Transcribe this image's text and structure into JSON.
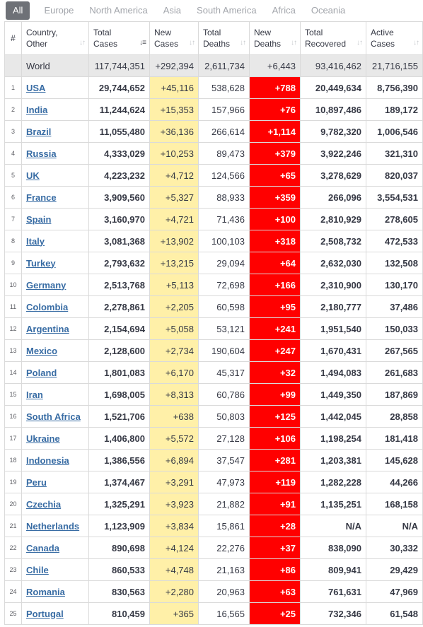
{
  "tabs": [
    "All",
    "Europe",
    "North America",
    "Asia",
    "South America",
    "Africa",
    "Oceania"
  ],
  "headers": {
    "index": "#",
    "country_line1": "Country,",
    "country_line2": "Other",
    "total_cases_line1": "Total",
    "total_cases_line2": "Cases",
    "new_cases_line1": "New",
    "new_cases_line2": "Cases",
    "total_deaths_line1": "Total",
    "total_deaths_line2": "Deaths",
    "new_deaths_line1": "New",
    "new_deaths_line2": "Deaths",
    "total_recovered_line1": "Total",
    "total_recovered_line2": "Recovered",
    "active_cases_line1": "Active",
    "active_cases_line2": "Cases"
  },
  "world": {
    "country": "World",
    "total_cases": "117,744,351",
    "new_cases": "+292,394",
    "total_deaths": "2,611,734",
    "new_deaths": "+6,443",
    "total_recovered": "93,416,462",
    "active_cases": "21,716,155"
  },
  "rows": [
    {
      "index": "1",
      "country": "USA",
      "total_cases": "29,744,652",
      "new_cases": "+45,116",
      "total_deaths": "538,628",
      "new_deaths": "+788",
      "total_recovered": "20,449,634",
      "active_cases": "8,756,390"
    },
    {
      "index": "2",
      "country": "India",
      "total_cases": "11,244,624",
      "new_cases": "+15,353",
      "total_deaths": "157,966",
      "new_deaths": "+76",
      "total_recovered": "10,897,486",
      "active_cases": "189,172"
    },
    {
      "index": "3",
      "country": "Brazil",
      "total_cases": "11,055,480",
      "new_cases": "+36,136",
      "total_deaths": "266,614",
      "new_deaths": "+1,114",
      "total_recovered": "9,782,320",
      "active_cases": "1,006,546"
    },
    {
      "index": "4",
      "country": "Russia",
      "total_cases": "4,333,029",
      "new_cases": "+10,253",
      "total_deaths": "89,473",
      "new_deaths": "+379",
      "total_recovered": "3,922,246",
      "active_cases": "321,310"
    },
    {
      "index": "5",
      "country": "UK",
      "total_cases": "4,223,232",
      "new_cases": "+4,712",
      "total_deaths": "124,566",
      "new_deaths": "+65",
      "total_recovered": "3,278,629",
      "active_cases": "820,037"
    },
    {
      "index": "6",
      "country": "France",
      "total_cases": "3,909,560",
      "new_cases": "+5,327",
      "total_deaths": "88,933",
      "new_deaths": "+359",
      "total_recovered": "266,096",
      "active_cases": "3,554,531"
    },
    {
      "index": "7",
      "country": "Spain",
      "total_cases": "3,160,970",
      "new_cases": "+4,721",
      "total_deaths": "71,436",
      "new_deaths": "+100",
      "total_recovered": "2,810,929",
      "active_cases": "278,605"
    },
    {
      "index": "8",
      "country": "Italy",
      "total_cases": "3,081,368",
      "new_cases": "+13,902",
      "total_deaths": "100,103",
      "new_deaths": "+318",
      "total_recovered": "2,508,732",
      "active_cases": "472,533"
    },
    {
      "index": "9",
      "country": "Turkey",
      "total_cases": "2,793,632",
      "new_cases": "+13,215",
      "total_deaths": "29,094",
      "new_deaths": "+64",
      "total_recovered": "2,632,030",
      "active_cases": "132,508"
    },
    {
      "index": "10",
      "country": "Germany",
      "total_cases": "2,513,768",
      "new_cases": "+5,113",
      "total_deaths": "72,698",
      "new_deaths": "+166",
      "total_recovered": "2,310,900",
      "active_cases": "130,170"
    },
    {
      "index": "11",
      "country": "Colombia",
      "total_cases": "2,278,861",
      "new_cases": "+2,205",
      "total_deaths": "60,598",
      "new_deaths": "+95",
      "total_recovered": "2,180,777",
      "active_cases": "37,486"
    },
    {
      "index": "12",
      "country": "Argentina",
      "total_cases": "2,154,694",
      "new_cases": "+5,058",
      "total_deaths": "53,121",
      "new_deaths": "+241",
      "total_recovered": "1,951,540",
      "active_cases": "150,033"
    },
    {
      "index": "13",
      "country": "Mexico",
      "total_cases": "2,128,600",
      "new_cases": "+2,734",
      "total_deaths": "190,604",
      "new_deaths": "+247",
      "total_recovered": "1,670,431",
      "active_cases": "267,565"
    },
    {
      "index": "14",
      "country": "Poland",
      "total_cases": "1,801,083",
      "new_cases": "+6,170",
      "total_deaths": "45,317",
      "new_deaths": "+32",
      "total_recovered": "1,494,083",
      "active_cases": "261,683"
    },
    {
      "index": "15",
      "country": "Iran",
      "total_cases": "1,698,005",
      "new_cases": "+8,313",
      "total_deaths": "60,786",
      "new_deaths": "+99",
      "total_recovered": "1,449,350",
      "active_cases": "187,869"
    },
    {
      "index": "16",
      "country": "South Africa",
      "total_cases": "1,521,706",
      "new_cases": "+638",
      "total_deaths": "50,803",
      "new_deaths": "+125",
      "total_recovered": "1,442,045",
      "active_cases": "28,858"
    },
    {
      "index": "17",
      "country": "Ukraine",
      "total_cases": "1,406,800",
      "new_cases": "+5,572",
      "total_deaths": "27,128",
      "new_deaths": "+106",
      "total_recovered": "1,198,254",
      "active_cases": "181,418"
    },
    {
      "index": "18",
      "country": "Indonesia",
      "total_cases": "1,386,556",
      "new_cases": "+6,894",
      "total_deaths": "37,547",
      "new_deaths": "+281",
      "total_recovered": "1,203,381",
      "active_cases": "145,628"
    },
    {
      "index": "19",
      "country": "Peru",
      "total_cases": "1,374,467",
      "new_cases": "+3,291",
      "total_deaths": "47,973",
      "new_deaths": "+119",
      "total_recovered": "1,282,228",
      "active_cases": "44,266"
    },
    {
      "index": "20",
      "country": "Czechia",
      "total_cases": "1,325,291",
      "new_cases": "+3,923",
      "total_deaths": "21,882",
      "new_deaths": "+91",
      "total_recovered": "1,135,251",
      "active_cases": "168,158"
    },
    {
      "index": "21",
      "country": "Netherlands",
      "total_cases": "1,123,909",
      "new_cases": "+3,834",
      "total_deaths": "15,861",
      "new_deaths": "+28",
      "total_recovered": "N/A",
      "active_cases": "N/A"
    },
    {
      "index": "22",
      "country": "Canada",
      "total_cases": "890,698",
      "new_cases": "+4,124",
      "total_deaths": "22,276",
      "new_deaths": "+37",
      "total_recovered": "838,090",
      "active_cases": "30,332"
    },
    {
      "index": "23",
      "country": "Chile",
      "total_cases": "860,533",
      "new_cases": "+4,748",
      "total_deaths": "21,163",
      "new_deaths": "+86",
      "total_recovered": "809,941",
      "active_cases": "29,429"
    },
    {
      "index": "24",
      "country": "Romania",
      "total_cases": "830,563",
      "new_cases": "+2,280",
      "total_deaths": "20,963",
      "new_deaths": "+63",
      "total_recovered": "761,631",
      "active_cases": "47,969"
    },
    {
      "index": "25",
      "country": "Portugal",
      "total_cases": "810,459",
      "new_cases": "+365",
      "total_deaths": "16,565",
      "new_deaths": "+25",
      "total_recovered": "732,346",
      "active_cases": "61,548"
    }
  ],
  "colors": {
    "new_cases_bg": "#fff0a8",
    "new_deaths_bg": "#ff0000",
    "link": "#386ca4",
    "tab_active_bg": "#6e7177",
    "world_row_bg": "#e8e8e8"
  },
  "icons": {
    "sort": "sort-arrows-icon",
    "sort_active": "sort-desc-active-icon"
  }
}
